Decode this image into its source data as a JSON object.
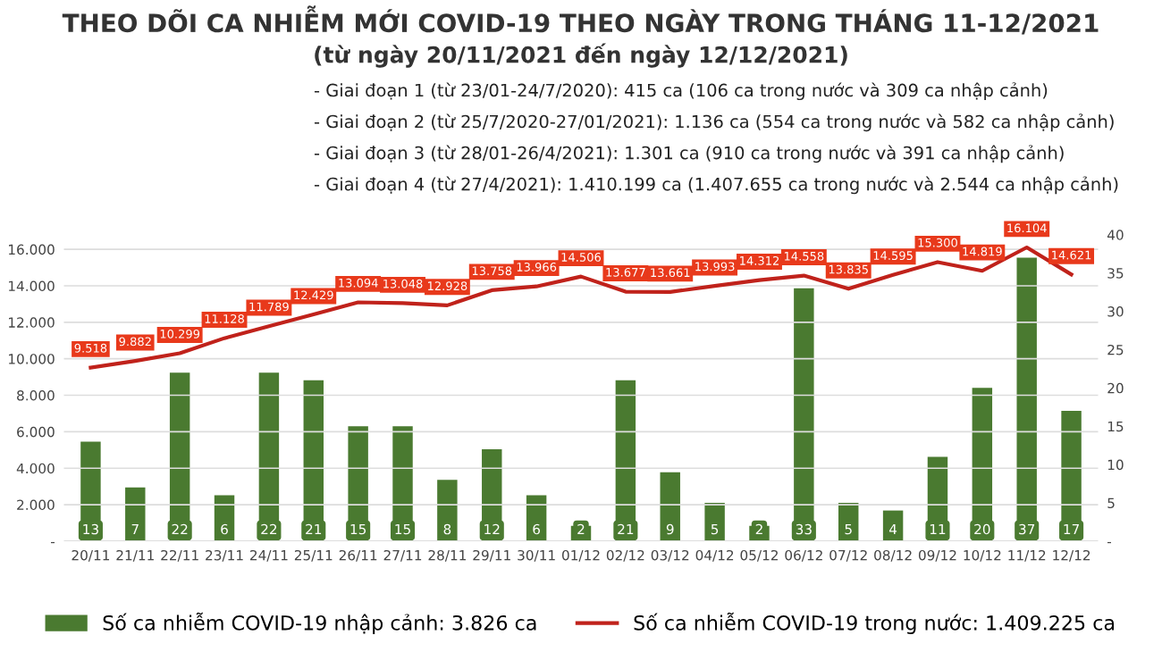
{
  "chart_data": {
    "type": "bar",
    "title": "THEO DÕI CA NHIỄM MỚI COVID-19 THEO NGÀY TRONG THÁNG 11-12/2021",
    "subtitle": "(từ ngày 20/11/2021 đến ngày 12/12/2021)",
    "annotations": [
      "- Giai đoạn 1 (từ 23/01-24/7/2020): 415 ca (106 ca trong nước và 309 ca nhập cảnh)",
      "- Giai đoạn 2 (từ 25/7/2020-27/01/2021): 1.136 ca (554 ca trong nước và 582 ca nhập cảnh)",
      "- Giai đoạn 3 (từ 28/01-26/4/2021): 1.301 ca (910 ca trong nước và 391 ca nhập cảnh)",
      "- Giai đoạn 4 (từ 27/4/2021): 1.410.199 ca (1.407.655 ca trong nước và 2.544 ca nhập cảnh)"
    ],
    "categories": [
      "20/11",
      "21/11",
      "22/11",
      "23/11",
      "24/11",
      "25/11",
      "26/11",
      "27/11",
      "28/11",
      "29/11",
      "30/11",
      "01/12",
      "02/12",
      "03/12",
      "04/12",
      "05/12",
      "06/12",
      "07/12",
      "08/12",
      "09/12",
      "10/12",
      "11/12",
      "12/12"
    ],
    "series": [
      {
        "name": "Số ca nhiễm COVID-19 nhập cảnh: 3.826 ca",
        "axis": "y2",
        "color": "#4a7a30",
        "values": [
          13,
          7,
          22,
          6,
          22,
          21,
          15,
          15,
          8,
          12,
          6,
          2,
          21,
          9,
          5,
          2,
          33,
          5,
          4,
          11,
          20,
          37,
          17
        ],
        "value_labels": [
          "13",
          "7",
          "22",
          "6",
          "22",
          "21",
          "15",
          "15",
          "8",
          "12",
          "6",
          "2",
          "21",
          "9",
          "5",
          "2",
          "33",
          "5",
          "4",
          "11",
          "20",
          "37",
          "17"
        ]
      },
      {
        "name": "Số ca nhiễm COVID-19 trong nước: 1.409.225 ca",
        "type": "line",
        "color": "#c0221b",
        "values": [
          9518,
          9882,
          10299,
          11128,
          11789,
          12429,
          13094,
          13048,
          12928,
          13758,
          13966,
          14506,
          13677,
          13661,
          13993,
          14312,
          14558,
          13835,
          14595,
          15300,
          14819,
          16104,
          14621
        ],
        "value_labels": [
          "9.518",
          "9.882",
          "10.299",
          "11.128",
          "11.789",
          "12.429",
          "13.094",
          "13.048",
          "12.928",
          "13.758",
          "13.966",
          "14.506",
          "13.677",
          "13.661",
          "13.993",
          "14.312",
          "14.558",
          "13.835",
          "14.595",
          "15.300",
          "14.819",
          "16.104",
          "14.621"
        ]
      }
    ],
    "ylim": [
      0,
      16800
    ],
    "yticks": [
      {
        "value": 0,
        "label": "-"
      },
      {
        "value": 2000,
        "label": "2.000"
      },
      {
        "value": 4000,
        "label": "4.000"
      },
      {
        "value": 6000,
        "label": "6.000"
      },
      {
        "value": 8000,
        "label": "8.000"
      },
      {
        "value": 10000,
        "label": "10.000"
      },
      {
        "value": 12000,
        "label": "12.000"
      },
      {
        "value": 14000,
        "label": "14.000"
      },
      {
        "value": 16000,
        "label": "16.000"
      }
    ],
    "y2lim": [
      0,
      40
    ],
    "y2ticks": [
      {
        "value": 0,
        "label": "-"
      },
      5,
      10,
      15,
      20,
      25,
      30,
      35,
      40
    ],
    "grid": "y",
    "legend": "bottom",
    "marker": "none",
    "line_style": "solid"
  }
}
